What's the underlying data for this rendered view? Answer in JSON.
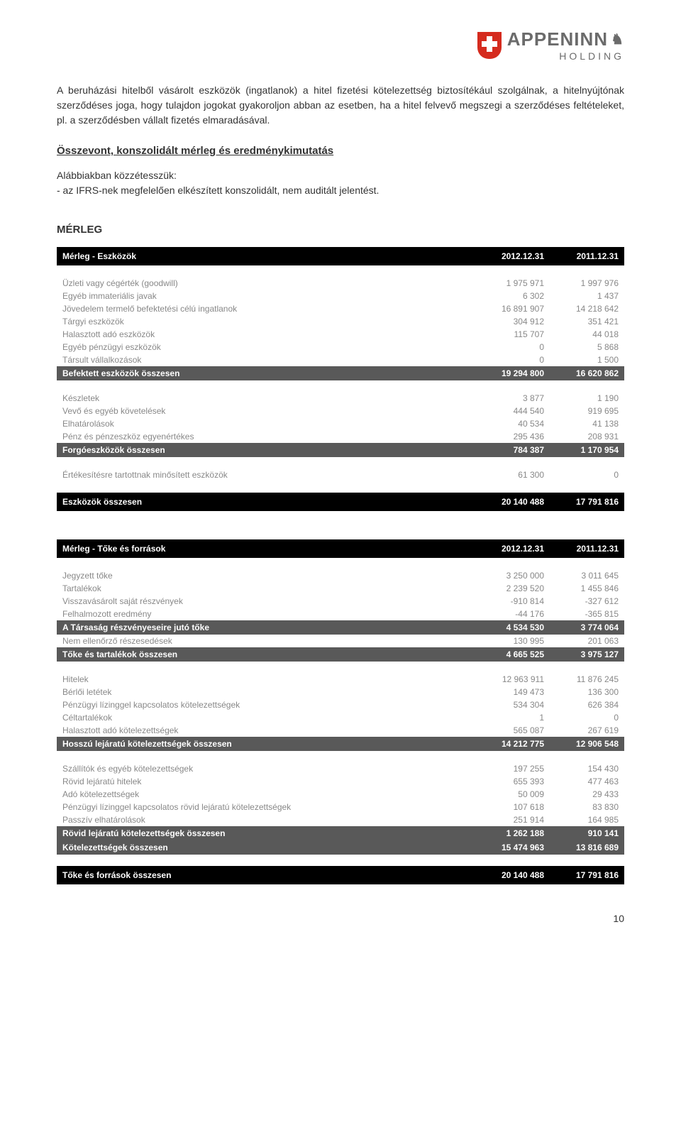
{
  "logo": {
    "brand": "APPENINN",
    "sub": "HOLDING"
  },
  "intro_paragraph": "A beruházási hitelből vásárolt eszközök (ingatlanok) a hitel fizetési kötelezettség biztosítékául szolgálnak, a hitelnyújtónak szerződéses joga, hogy tulajdon jogokat gyakoroljon abban az esetben, ha a hitel felvevő megszegi a szerződéses feltételeket, pl. a szerződésben vállalt fizetés elmaradásával.",
  "section_heading": "Összevont, konszolidált mérleg és eredménykimutatás",
  "publish_intro": "Alábbiakban közzétesszük:",
  "publish_item": "- az IFRS-nek megfelelően elkészített konszolidált, nem auditált jelentést.",
  "merleg_title": "MÉRLEG",
  "page_number": "10",
  "table_assets": {
    "header": {
      "title": "Mérleg - Eszközök",
      "col1": "2012.12.31",
      "col2": "2011.12.31"
    },
    "group1": [
      {
        "label": "Üzleti vagy cégérték (goodwill)",
        "v1": "1 975 971",
        "v2": "1 997 976"
      },
      {
        "label": "Egyéb immateriális javak",
        "v1": "6 302",
        "v2": "1 437"
      },
      {
        "label": "Jövedelem termelő befektetési célú ingatlanok",
        "v1": "16 891 907",
        "v2": "14 218 642"
      },
      {
        "label": "Tárgyi eszközök",
        "v1": "304 912",
        "v2": "351 421"
      },
      {
        "label": "Halasztott adó eszközök",
        "v1": "115 707",
        "v2": "44 018"
      },
      {
        "label": "Egyéb pénzügyi eszközök",
        "v1": "0",
        "v2": "5 868"
      },
      {
        "label": "Társult vállalkozások",
        "v1": "0",
        "v2": "1 500"
      }
    ],
    "group1_total": {
      "label": "Befektett eszközök összesen",
      "v1": "19 294 800",
      "v2": "16 620 862"
    },
    "group2": [
      {
        "label": "Készletek",
        "v1": "3 877",
        "v2": "1 190"
      },
      {
        "label": "Vevő és egyéb követelések",
        "v1": "444 540",
        "v2": "919 695"
      },
      {
        "label": "Elhatárolások",
        "v1": "40 534",
        "v2": "41 138"
      },
      {
        "label": "Pénz és pénzeszköz egyenértékes",
        "v1": "295 436",
        "v2": "208 931"
      }
    ],
    "group2_total": {
      "label": "Forgóeszközök összesen",
      "v1": "784 387",
      "v2": "1 170 954"
    },
    "group3": [
      {
        "label": "Értékesítésre tartottnak minősített eszközök",
        "v1": "61 300",
        "v2": "0"
      }
    ],
    "grand_total": {
      "label": "Eszközök összesen",
      "v1": "20 140 488",
      "v2": "17 791 816"
    }
  },
  "table_equity": {
    "header": {
      "title": "Mérleg - Tőke és források",
      "col1": "2012.12.31",
      "col2": "2011.12.31"
    },
    "group1": [
      {
        "label": "Jegyzett tőke",
        "v1": "3 250 000",
        "v2": "3 011 645"
      },
      {
        "label": "Tartalékok",
        "v1": "2 239 520",
        "v2": "1 455 846"
      },
      {
        "label": "Visszavásárolt saját részvények",
        "v1": "-910 814",
        "v2": "-327 612"
      },
      {
        "label": "Felhalmozott eredmény",
        "v1": "-44 176",
        "v2": "-365 815"
      }
    ],
    "group1_sub": {
      "label": "A Társaság részvényeseire jutó tőke",
      "v1": "4 534 530",
      "v2": "3 774 064"
    },
    "group1_extra": [
      {
        "label": "Nem ellenőrző részesedések",
        "v1": "130 995",
        "v2": "201 063"
      }
    ],
    "group1_total": {
      "label": "Tőke és tartalékok összesen",
      "v1": "4 665 525",
      "v2": "3 975 127"
    },
    "group2": [
      {
        "label": "Hitelek",
        "v1": "12 963 911",
        "v2": "11 876 245"
      },
      {
        "label": "Bérlői letétek",
        "v1": "149 473",
        "v2": "136 300"
      },
      {
        "label": "Pénzügyi lízinggel kapcsolatos kötelezettségek",
        "v1": "534 304",
        "v2": "626 384"
      },
      {
        "label": "Céltartalékok",
        "v1": "1",
        "v2": "0"
      },
      {
        "label": "Halasztott adó kötelezettségek",
        "v1": "565 087",
        "v2": "267 619"
      }
    ],
    "group2_total": {
      "label": "Hosszú lejáratú kötelezettségek összesen",
      "v1": "14 212 775",
      "v2": "12 906 548"
    },
    "group3": [
      {
        "label": "Szállítók és egyéb kötelezettségek",
        "v1": "197 255",
        "v2": "154 430"
      },
      {
        "label": "Rövid lejáratú hitelek",
        "v1": "655 393",
        "v2": "477 463"
      },
      {
        "label": "Adó kötelezettségek",
        "v1": "50 009",
        "v2": "29 433"
      },
      {
        "label": "Pénzügyi lízinggel kapcsolatos rövid lejáratú kötelezettségek",
        "v1": "107 618",
        "v2": "83 830"
      },
      {
        "label": "Passzív elhatárolások",
        "v1": "251 914",
        "v2": "164 985"
      }
    ],
    "group3_total": {
      "label": "Rövid lejáratú kötelezettségek összesen",
      "v1": "1 262 188",
      "v2": "910 141"
    },
    "liab_total": {
      "label": "Kötelezettségek összesen",
      "v1": "15 474 963",
      "v2": "13 816 689"
    },
    "grand_total": {
      "label": "Tőke és források összesen",
      "v1": "20 140 488",
      "v2": "17 791 816"
    }
  }
}
